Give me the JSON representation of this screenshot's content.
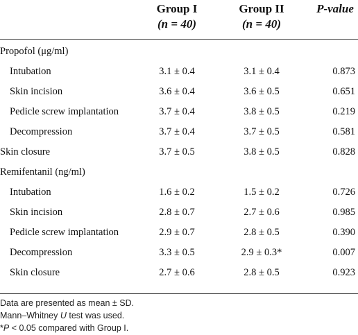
{
  "header": {
    "group1_title": "Group I",
    "group1_n": "(n = 40)",
    "group2_title": "Group II",
    "group2_n": "(n = 40)",
    "pvalue_title": "P-value"
  },
  "rows": [
    {
      "label": "Propofol (μg/ml)",
      "g1": "",
      "g2": "",
      "p": ""
    },
    {
      "label": "Intubation",
      "g1": "3.1 ± 0.4",
      "g2": "3.1 ± 0.4",
      "p": "0.873"
    },
    {
      "label": "Skin incision",
      "g1": "3.6 ± 0.4",
      "g2": "3.6 ± 0.5",
      "p": "0.651"
    },
    {
      "label": "Pedicle screw implantation",
      "g1": "3.7 ± 0.4",
      "g2": "3.8 ± 0.5",
      "p": "0.219"
    },
    {
      "label": "Decompression",
      "g1": "3.7 ± 0.4",
      "g2": "3.7 ± 0.5",
      "p": "0.581"
    },
    {
      "label": "Skin closure",
      "g1": "3.7 ± 0.5",
      "g2": "3.8 ± 0.5",
      "p": "0.828"
    },
    {
      "label": "Remifentanil (ng/ml)",
      "g1": "",
      "g2": "",
      "p": ""
    },
    {
      "label": "Intubation",
      "g1": "1.6 ± 0.2",
      "g2": "1.5 ± 0.2",
      "p": "0.726"
    },
    {
      "label": "Skin incision",
      "g1": "2.8 ± 0.7",
      "g2": "2.7 ± 0.6",
      "p": "0.985"
    },
    {
      "label": "Pedicle screw implantation",
      "g1": "2.9 ± 0.7",
      "g2": "2.8 ± 0.5",
      "p": "0.390"
    },
    {
      "label": "Decompression",
      "g1": "3.3 ± 0.5",
      "g2": "2.9 ± 0.3*",
      "p": "0.007"
    },
    {
      "label": "Skin closure",
      "g1": "2.7 ± 0.6",
      "g2": "2.8 ± 0.5",
      "p": "0.923"
    }
  ],
  "notes": {
    "line1": "Data are presented as mean ± SD.",
    "line2": "Mann–Whitney U test was used.",
    "line3": "*P < 0.05 compared with Group I."
  }
}
